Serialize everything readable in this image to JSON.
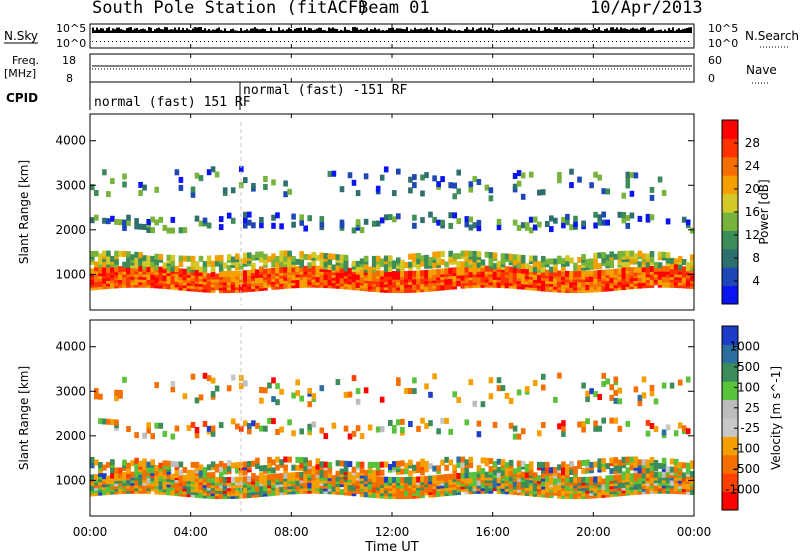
{
  "header": {
    "station": "South Pole Station (fitACF)",
    "beam": "Beam 01",
    "date": "10/Apr/2013"
  },
  "strip_panels": {
    "nsky": {
      "label": "N.Sky",
      "ticks": [
        "10^5",
        "10^0"
      ],
      "right_ticks": [
        "10^5",
        "10^0"
      ],
      "right_label": "N.Search"
    },
    "freq": {
      "label_top": "Freq.",
      "label_unit": "[MHz]",
      "ticks": [
        "18",
        "8"
      ],
      "right_ticks": [
        "60",
        "0"
      ],
      "right_label": "Nave"
    },
    "cpid": {
      "label": "CPID",
      "segments": [
        {
          "label": "normal (fast) 151 RF",
          "start_hour": 0,
          "end_hour": 6
        },
        {
          "label": "normal (fast) -151 RF",
          "start_hour": 6,
          "end_hour": 24
        }
      ]
    }
  },
  "time_axis": {
    "label": "Time UT",
    "ticks": [
      "00:00",
      "04:00",
      "08:00",
      "12:00",
      "16:00",
      "20:00",
      "00:00"
    ]
  },
  "chart_data": [
    {
      "type": "heatmap",
      "name": "power",
      "ylabel": "Slant Range [km]",
      "yticks": [
        1000,
        2000,
        3000,
        4000
      ],
      "ylim": [
        200,
        4600
      ],
      "xlim_hours": [
        0,
        24
      ],
      "colorbar": {
        "label": "Power [dB]",
        "ticks": [
          "4",
          "8",
          "12",
          "16",
          "20",
          "24",
          "28"
        ],
        "colors": [
          "#0a14f0",
          "#1e46b4",
          "#2f6e6e",
          "#3c8c5a",
          "#78b43c",
          "#d2c828",
          "#f5a000",
          "#f56e00",
          "#ff3200",
          "#ff0000"
        ]
      },
      "bands": [
        {
          "center_km": 850,
          "width_km": 420,
          "density": 0.97,
          "level": "high"
        },
        {
          "center_km": 1250,
          "width_km": 300,
          "density": 0.55,
          "level": "mid"
        },
        {
          "center_km": 2100,
          "width_km": 250,
          "density": 0.18,
          "level": "low"
        },
        {
          "center_km": 3000,
          "width_km": 600,
          "density": 0.07,
          "level": "low"
        }
      ]
    },
    {
      "type": "heatmap",
      "name": "velocity",
      "ylabel": "Slant Range [km]",
      "yticks": [
        1000,
        2000,
        3000,
        4000
      ],
      "ylim": [
        200,
        4600
      ],
      "xlim_hours": [
        0,
        24
      ],
      "colorbar": {
        "label": "Velocity [m s^-1]",
        "ticks": [
          "-1000",
          "-500",
          "-100",
          "-25",
          "25",
          "100",
          "500",
          "1000"
        ],
        "colors": [
          "#ff0000",
          "#ff4000",
          "#f56e00",
          "#f5a000",
          "#c8c8c8",
          "#bdbdbd",
          "#58c23a",
          "#3c8c5a",
          "#2d6ea0",
          "#1e3cc8"
        ]
      },
      "bands": [
        {
          "center_km": 850,
          "width_km": 420,
          "density": 0.95,
          "level": "mixed"
        },
        {
          "center_km": 1250,
          "width_km": 300,
          "density": 0.5,
          "level": "mixed"
        },
        {
          "center_km": 2100,
          "width_km": 250,
          "density": 0.15,
          "level": "mixed"
        },
        {
          "center_km": 3000,
          "width_km": 600,
          "density": 0.06,
          "level": "mixed"
        }
      ]
    }
  ]
}
